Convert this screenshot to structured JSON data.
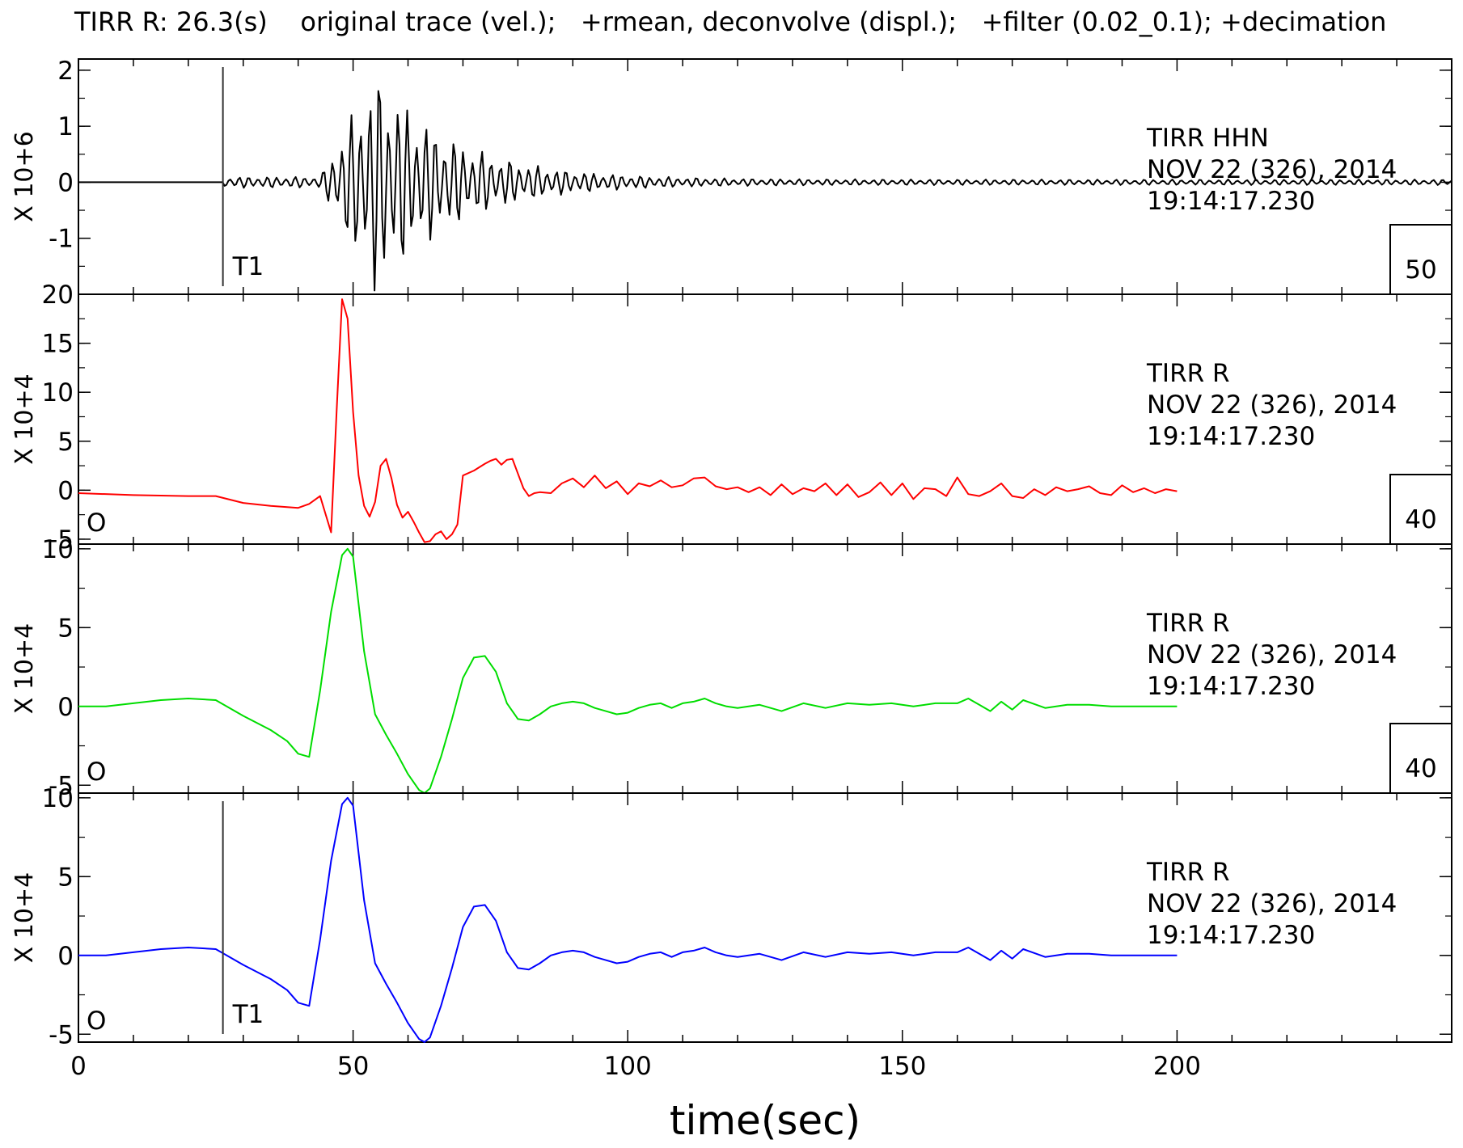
{
  "header": {
    "title": "TIRR R: 26.3(s)    original trace (vel.);   +rmean, deconvolve (displ.);   +filter (0.02_0.1); +decimation"
  },
  "xlabel": "time(sec)",
  "colors": {
    "axis": "#000000",
    "red": "#ff0000",
    "green": "#00dd00",
    "blue": "#0000ff",
    "black": "#000000"
  },
  "chart_data": [
    {
      "type": "line",
      "panel": 1,
      "xlim": [
        0,
        250
      ],
      "ylim": [
        -2,
        2.2
      ],
      "xticks": [
        0,
        50,
        100,
        150,
        200
      ],
      "yticks": [
        -1,
        0,
        1,
        2
      ],
      "ytick_labels": [
        "-1",
        "0",
        "1",
        "2"
      ],
      "scale_label": "X 10+6",
      "station": "TIRR  HHN",
      "date": "NOV 22 (326), 2014",
      "time": "19:14:17.230",
      "box_label": "50",
      "markers": [
        {
          "x": 26.3,
          "label": "T1"
        }
      ],
      "series": [
        {
          "color": "#000000",
          "kind": "seismogram",
          "onset": 26.3,
          "end": 250
        }
      ]
    },
    {
      "type": "line",
      "panel": 2,
      "xlim": [
        0,
        250
      ],
      "ylim": [
        -5.5,
        20
      ],
      "xticks": [
        0,
        50,
        100,
        150,
        200
      ],
      "yticks": [
        -5,
        0,
        5,
        10,
        15,
        20
      ],
      "ytick_labels": [
        "-5",
        "0",
        "5",
        "10",
        "15",
        "20"
      ],
      "scale_label": "X 10+4",
      "station": "TIRR  R",
      "date": "NOV 22 (326), 2014",
      "time": "19:14:17.230",
      "box_label": "40",
      "origin_label": "O",
      "markers": [],
      "series": [
        {
          "color": "#ff0000",
          "x": [
            0,
            10,
            20,
            25,
            30,
            35,
            40,
            42,
            44,
            46,
            47,
            48,
            49,
            50,
            51,
            52,
            53,
            54,
            55,
            56,
            57,
            58,
            59,
            60,
            61,
            62,
            63,
            64,
            65,
            66,
            67,
            68,
            69,
            70,
            72,
            74,
            75,
            76,
            77,
            78,
            79,
            80,
            81,
            82,
            83,
            84,
            86,
            88,
            90,
            92,
            94,
            96,
            98,
            100,
            102,
            104,
            106,
            108,
            110,
            112,
            114,
            116,
            118,
            120,
            122,
            124,
            126,
            128,
            130,
            132,
            134,
            136,
            138,
            140,
            142,
            144,
            146,
            148,
            150,
            152,
            154,
            156,
            158,
            160,
            162,
            164,
            166,
            168,
            170,
            172,
            174,
            176,
            178,
            180,
            182,
            184,
            186,
            188,
            190,
            192,
            194,
            196,
            198,
            200
          ],
          "y": [
            -0.3,
            -0.5,
            -0.6,
            -0.6,
            -1.3,
            -1.6,
            -1.8,
            -1.4,
            -0.6,
            -4.3,
            8,
            19.5,
            17.5,
            8,
            1.5,
            -1.6,
            -2.7,
            -1.2,
            2.5,
            3.2,
            1.2,
            -1.5,
            -2.8,
            -2.2,
            -3.2,
            -4.3,
            -5.3,
            -5.2,
            -4.5,
            -4.2,
            -5,
            -4.5,
            -3.5,
            1.5,
            2,
            2.7,
            3,
            3.2,
            2.6,
            3.1,
            3.2,
            1.7,
            0.2,
            -0.6,
            -0.3,
            -0.2,
            -0.3,
            0.7,
            1.2,
            0.3,
            1.5,
            0.2,
            0.9,
            -0.4,
            0.7,
            0.4,
            1,
            0.3,
            0.5,
            1.2,
            1.3,
            0.4,
            0.1,
            0.3,
            -0.2,
            0.3,
            -0.5,
            0.6,
            -0.4,
            0.2,
            -0.1,
            0.7,
            -0.5,
            0.6,
            -0.7,
            -0.2,
            0.8,
            -0.5,
            0.7,
            -0.9,
            0.2,
            0.1,
            -0.6,
            1.3,
            -0.4,
            -0.6,
            -0.1,
            0.7,
            -0.6,
            -0.8,
            0.1,
            -0.5,
            0.3,
            -0.1,
            0.1,
            0.4,
            -0.3,
            -0.5,
            0.5,
            -0.2,
            0.2,
            -0.3,
            0.1,
            -0.1
          ]
        }
      ]
    },
    {
      "type": "line",
      "panel": 3,
      "xlim": [
        0,
        250
      ],
      "ylim": [
        -5.5,
        10.3
      ],
      "xticks": [
        0,
        50,
        100,
        150,
        200
      ],
      "yticks": [
        -5,
        0,
        5,
        10
      ],
      "ytick_labels": [
        "-5",
        "0",
        "5",
        "10"
      ],
      "scale_label": "X 10+4",
      "station": "TIRR  R",
      "date": "NOV 22 (326), 2014",
      "time": "19:14:17.230",
      "box_label": "40",
      "origin_label": "O",
      "markers": [],
      "series": [
        {
          "color": "#00dd00",
          "x": [
            0,
            5,
            10,
            15,
            20,
            25,
            30,
            35,
            38,
            40,
            42,
            44,
            46,
            48,
            49,
            50,
            52,
            54,
            56,
            58,
            60,
            62,
            63,
            64,
            66,
            68,
            70,
            72,
            74,
            76,
            78,
            80,
            82,
            84,
            86,
            88,
            90,
            92,
            94,
            96,
            98,
            100,
            102,
            104,
            106,
            108,
            110,
            112,
            114,
            116,
            118,
            120,
            124,
            128,
            132,
            136,
            140,
            144,
            148,
            152,
            156,
            160,
            162,
            164,
            166,
            168,
            170,
            172,
            176,
            180,
            184,
            188,
            192,
            196,
            200
          ],
          "y": [
            0,
            0,
            0.2,
            0.4,
            0.5,
            0.4,
            -0.6,
            -1.5,
            -2.2,
            -3,
            -3.2,
            1,
            6,
            9.6,
            10,
            9.5,
            3.5,
            -0.5,
            -1.8,
            -3,
            -4.3,
            -5.3,
            -5.5,
            -5.2,
            -3.2,
            -0.8,
            1.8,
            3.1,
            3.2,
            2.2,
            0.2,
            -0.8,
            -0.9,
            -0.5,
            0,
            0.2,
            0.3,
            0.2,
            -0.1,
            -0.3,
            -0.5,
            -0.4,
            -0.1,
            0.1,
            0.2,
            -0.1,
            0.2,
            0.3,
            0.5,
            0.2,
            0,
            -0.1,
            0.1,
            -0.3,
            0.2,
            -0.1,
            0.2,
            0.1,
            0.2,
            0,
            0.2,
            0.2,
            0.5,
            0.1,
            -0.3,
            0.3,
            -0.2,
            0.4,
            -0.1,
            0.1,
            0.1,
            0,
            0,
            0,
            0
          ]
        }
      ]
    },
    {
      "type": "line",
      "panel": 4,
      "xlim": [
        0,
        250
      ],
      "ylim": [
        -5.5,
        10.3
      ],
      "xticks": [
        0,
        50,
        100,
        150,
        200
      ],
      "yticks": [
        -5,
        0,
        5,
        10
      ],
      "ytick_labels": [
        "-5",
        "0",
        "5",
        "10"
      ],
      "scale_label": "X 10+4",
      "station": "TIRR  R",
      "date": "NOV 22 (326), 2014",
      "time": "19:14:17.230",
      "origin_label": "O",
      "markers": [
        {
          "x": 26.3,
          "label": "T1"
        }
      ],
      "series": [
        {
          "color": "#0000ff",
          "x": [
            0,
            5,
            10,
            15,
            20,
            25,
            30,
            35,
            38,
            40,
            42,
            44,
            46,
            48,
            49,
            50,
            52,
            54,
            56,
            58,
            60,
            62,
            63,
            64,
            66,
            68,
            70,
            72,
            74,
            76,
            78,
            80,
            82,
            84,
            86,
            88,
            90,
            92,
            94,
            96,
            98,
            100,
            102,
            104,
            106,
            108,
            110,
            112,
            114,
            116,
            118,
            120,
            124,
            128,
            132,
            136,
            140,
            144,
            148,
            152,
            156,
            160,
            162,
            164,
            166,
            168,
            170,
            172,
            176,
            180,
            184,
            188,
            192,
            196,
            200
          ],
          "y": [
            0,
            0,
            0.2,
            0.4,
            0.5,
            0.4,
            -0.6,
            -1.5,
            -2.2,
            -3,
            -3.2,
            1,
            6,
            9.6,
            10,
            9.5,
            3.5,
            -0.5,
            -1.8,
            -3,
            -4.3,
            -5.3,
            -5.5,
            -5.2,
            -3.2,
            -0.8,
            1.8,
            3.1,
            3.2,
            2.2,
            0.2,
            -0.8,
            -0.9,
            -0.5,
            0,
            0.2,
            0.3,
            0.2,
            -0.1,
            -0.3,
            -0.5,
            -0.4,
            -0.1,
            0.1,
            0.2,
            -0.1,
            0.2,
            0.3,
            0.5,
            0.2,
            0,
            -0.1,
            0.1,
            -0.3,
            0.2,
            -0.1,
            0.2,
            0.1,
            0.2,
            0,
            0.2,
            0.2,
            0.5,
            0.1,
            -0.3,
            0.3,
            -0.2,
            0.4,
            -0.1,
            0.1,
            0.1,
            0,
            0,
            0,
            0
          ]
        }
      ]
    }
  ]
}
